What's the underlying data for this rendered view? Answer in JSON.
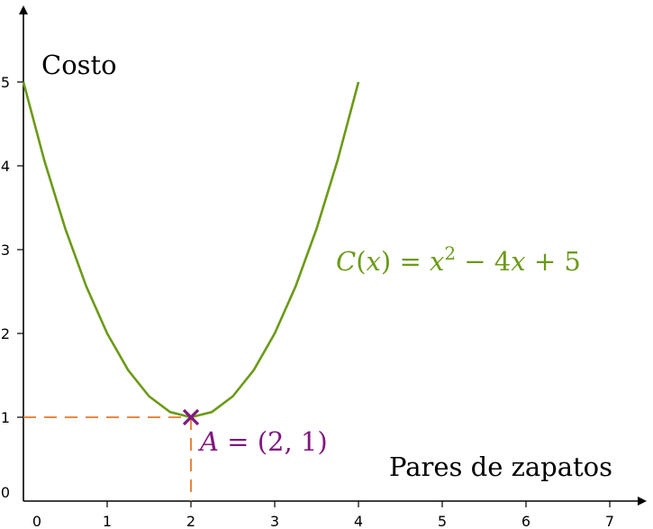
{
  "chart_data": {
    "type": "line",
    "xlabel": "Pares de zapatos",
    "ylabel": "Costo",
    "xlim": [
      0,
      7
    ],
    "ylim": [
      0,
      5
    ],
    "x_ticks": [
      "0",
      "1",
      "2",
      "3",
      "4",
      "5",
      "6",
      "7"
    ],
    "y_ticks": [
      "0",
      "1",
      "2",
      "3",
      "4",
      "5"
    ],
    "grid": false,
    "series": [
      {
        "name": "C(x) = x² − 4x + 5",
        "color": "#6b9a17",
        "x": [
          0,
          0.25,
          0.5,
          0.75,
          1,
          1.25,
          1.5,
          1.75,
          2,
          2.25,
          2.5,
          2.75,
          3,
          3.25,
          3.5,
          3.75,
          4
        ],
        "y": [
          5,
          4.0625,
          3.25,
          2.5625,
          2,
          1.5625,
          1.25,
          1.0625,
          1,
          1.0625,
          1.25,
          1.5625,
          2,
          2.5625,
          3.25,
          4.0625,
          5
        ]
      }
    ],
    "point": {
      "label": "A = (2, 1)",
      "x": 2,
      "y": 1,
      "color": "#80177e"
    },
    "guide_color": "#e8782a",
    "axis_color": "#000000"
  }
}
